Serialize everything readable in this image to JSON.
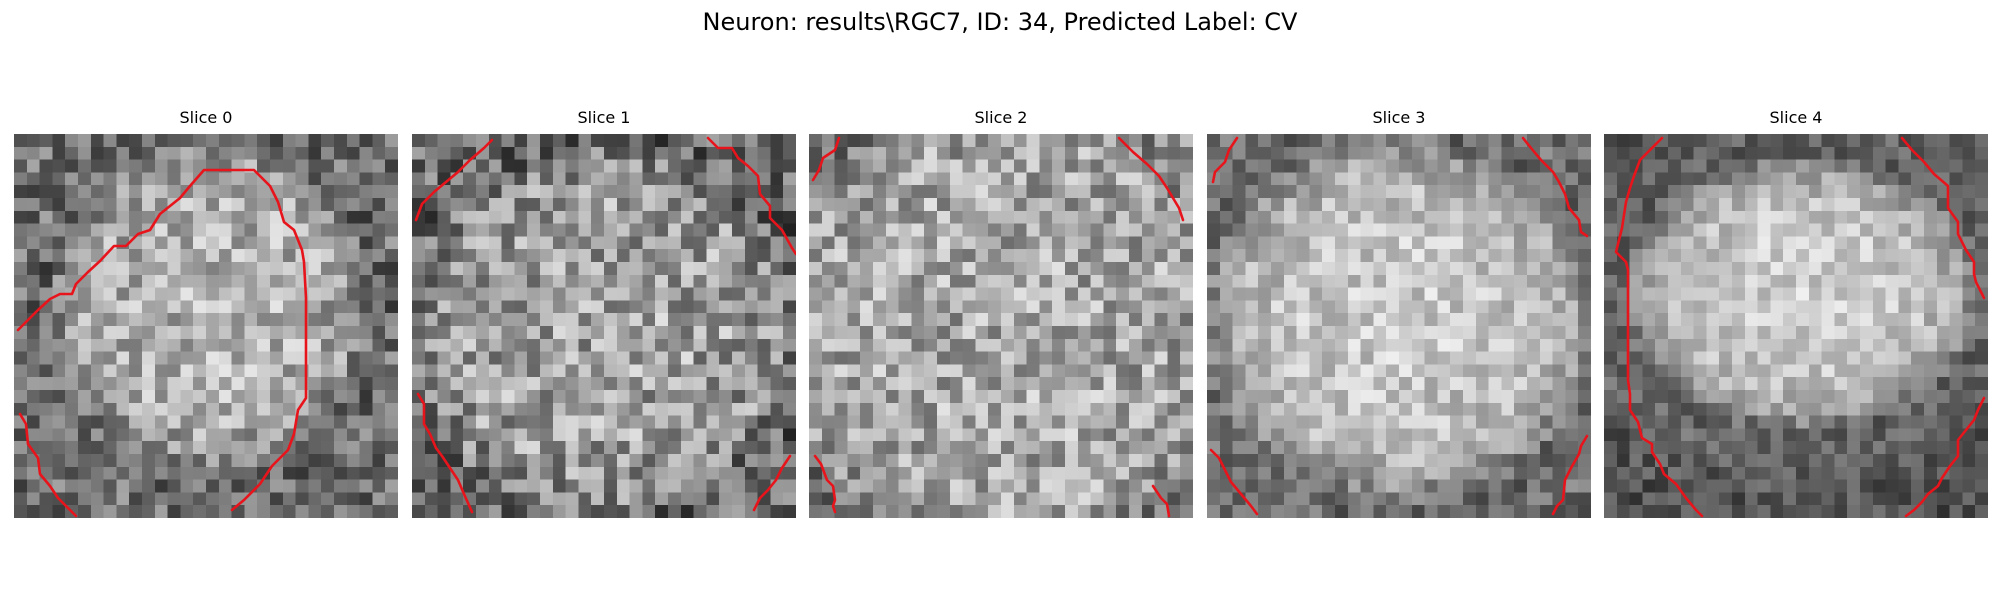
{
  "figure": {
    "title": "Neuron: results\\RGC7, ID: 34, Predicted Label: CV"
  },
  "panels": [
    {
      "title": "Slice 0",
      "contour_color": "#e8141c"
    },
    {
      "title": "Slice 1",
      "contour_color": "#e8141c"
    },
    {
      "title": "Slice 2",
      "contour_color": "#e8141c"
    },
    {
      "title": "Slice 3",
      "contour_color": "#e8141c"
    },
    {
      "title": "Slice 4",
      "contour_color": "#e8141c"
    }
  ]
}
